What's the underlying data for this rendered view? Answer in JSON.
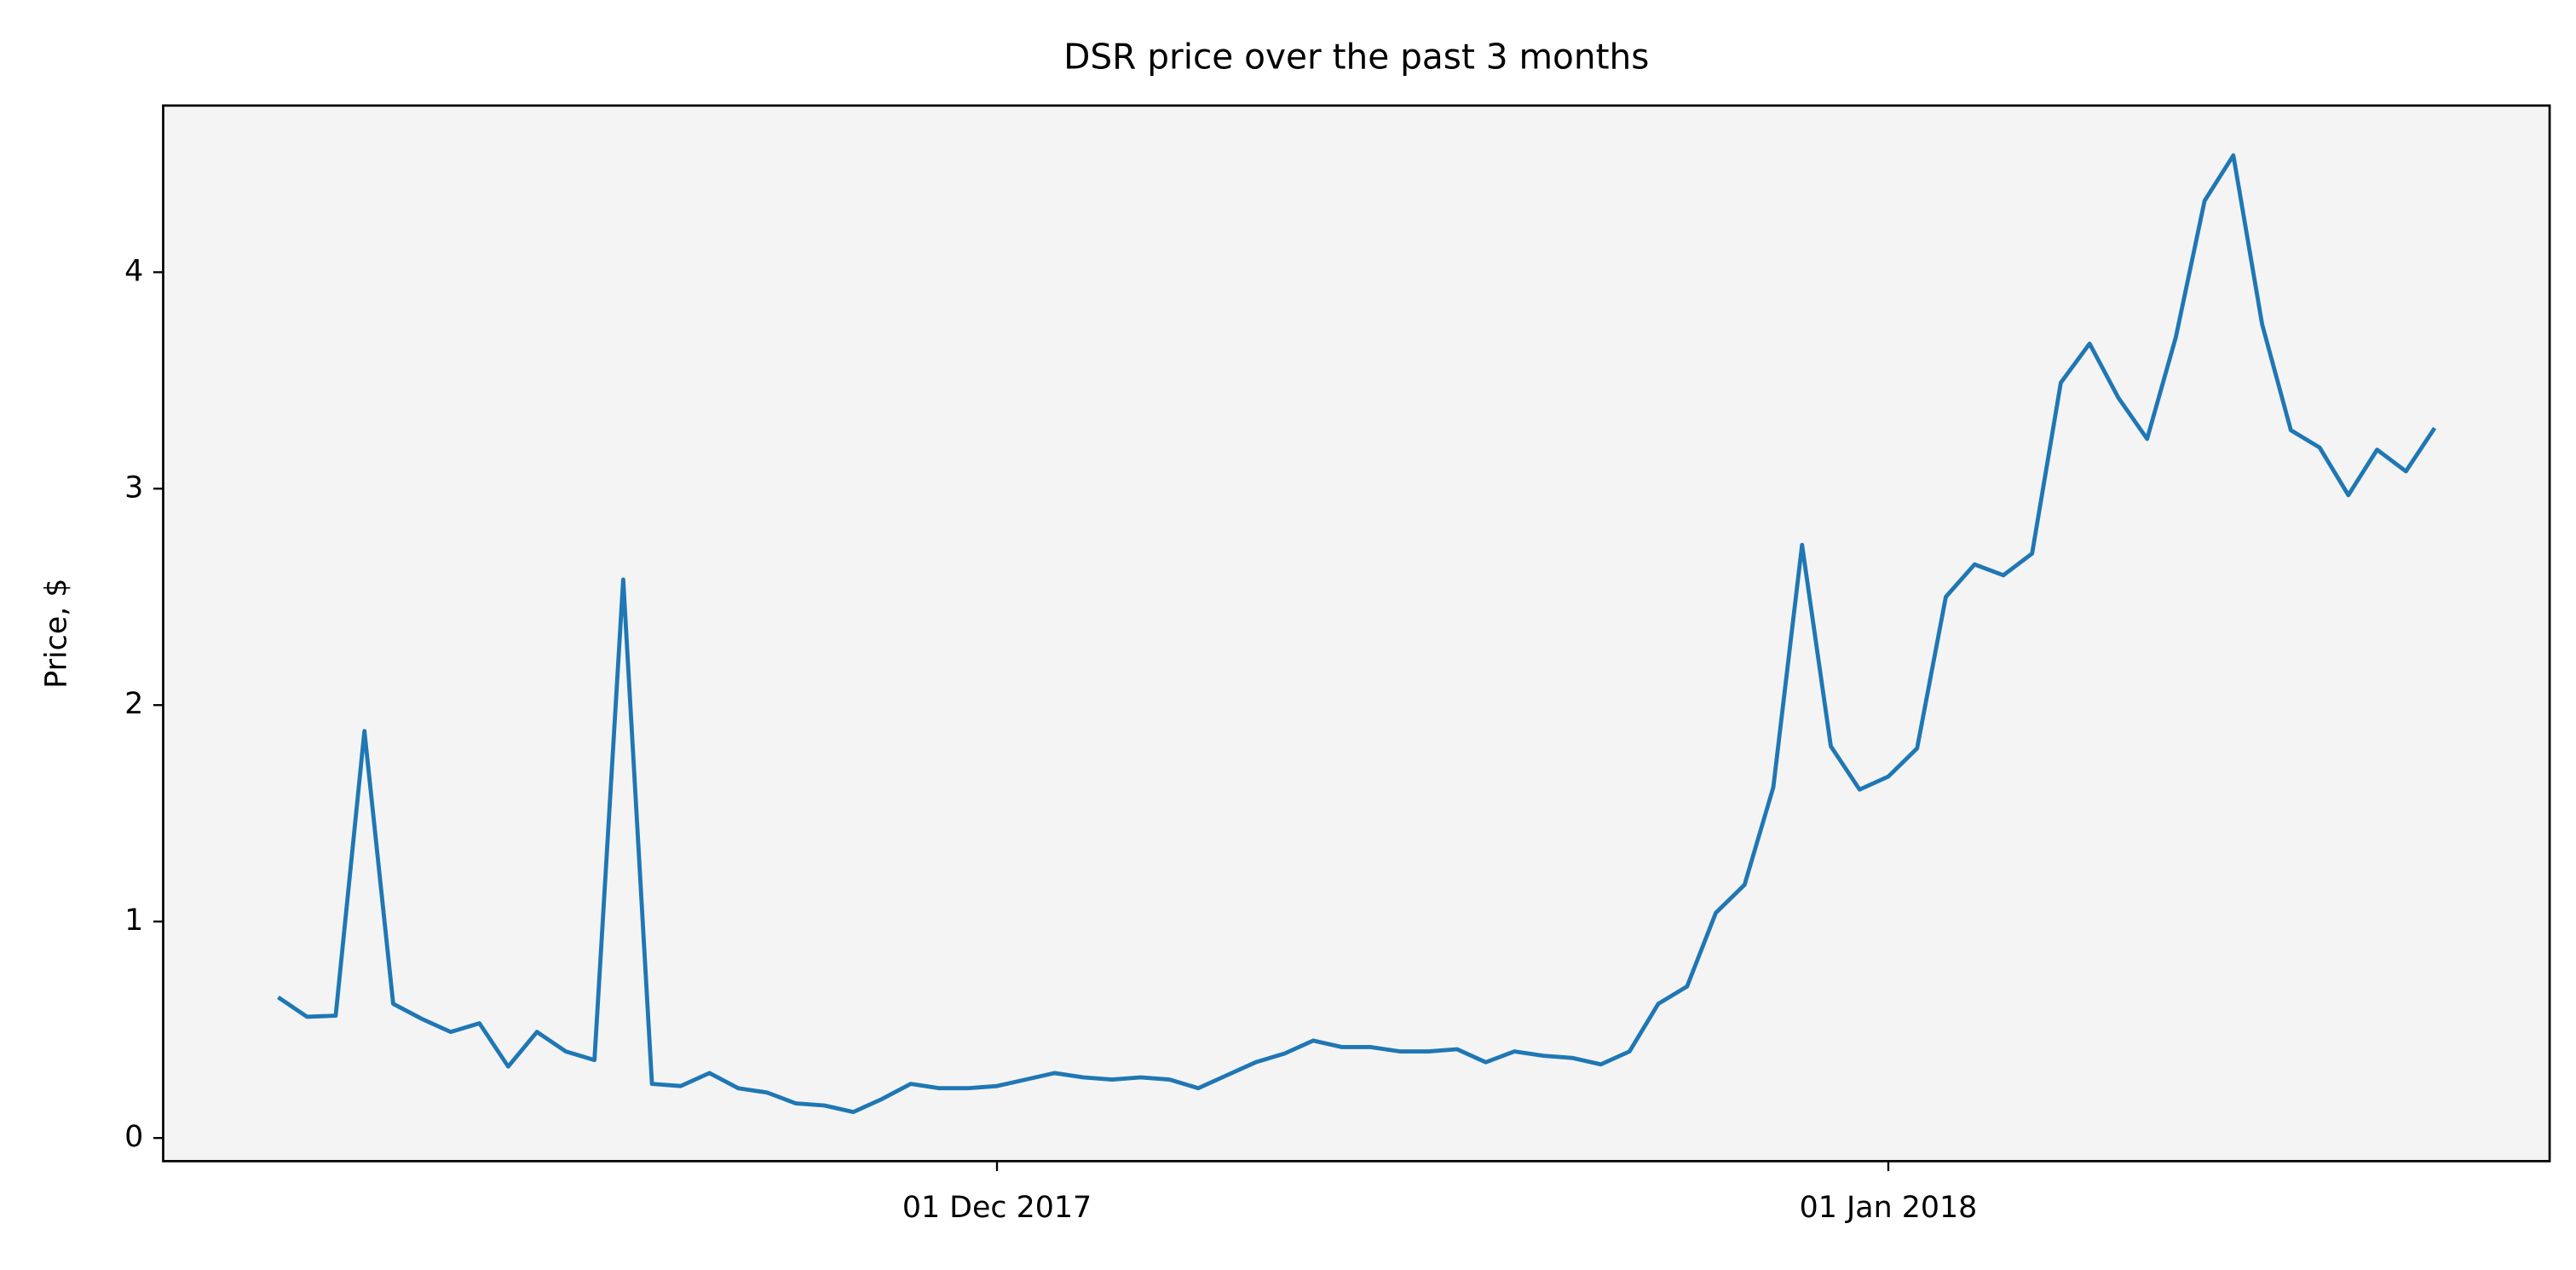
{
  "chart_data": {
    "type": "line",
    "title": "DSR price over the past 3 months",
    "y_label": "Price, $",
    "x": [
      "2017-11-06",
      "2017-11-07",
      "2017-11-08",
      "2017-11-09",
      "2017-11-10",
      "2017-11-11",
      "2017-11-12",
      "2017-11-13",
      "2017-11-14",
      "2017-11-15",
      "2017-11-16",
      "2017-11-17",
      "2017-11-18",
      "2017-11-19",
      "2017-11-20",
      "2017-11-21",
      "2017-11-22",
      "2017-11-23",
      "2017-11-24",
      "2017-11-25",
      "2017-11-26",
      "2017-11-27",
      "2017-11-28",
      "2017-11-29",
      "2017-11-30",
      "2017-12-01",
      "2017-12-02",
      "2017-12-03",
      "2017-12-04",
      "2017-12-05",
      "2017-12-06",
      "2017-12-07",
      "2017-12-08",
      "2017-12-09",
      "2017-12-10",
      "2017-12-11",
      "2017-12-12",
      "2017-12-13",
      "2017-12-14",
      "2017-12-15",
      "2017-12-16",
      "2017-12-17",
      "2017-12-18",
      "2017-12-19",
      "2017-12-20",
      "2017-12-21",
      "2017-12-22",
      "2017-12-23",
      "2017-12-24",
      "2017-12-25",
      "2017-12-26",
      "2017-12-27",
      "2017-12-28",
      "2017-12-29",
      "2017-12-30",
      "2017-12-31",
      "2018-01-01",
      "2018-01-02",
      "2018-01-03",
      "2018-01-04",
      "2018-01-05",
      "2018-01-06",
      "2018-01-07",
      "2018-01-08",
      "2018-01-09",
      "2018-01-10",
      "2018-01-11",
      "2018-01-12",
      "2018-01-13",
      "2018-01-14",
      "2018-01-15",
      "2018-01-16",
      "2018-01-17",
      "2018-01-18",
      "2018-01-19",
      "2018-01-20"
    ],
    "series": [
      {
        "color": "#1f77b4",
        "values": [
          0.65,
          0.56,
          0.565,
          1.88,
          0.62,
          0.55,
          0.49,
          0.53,
          0.33,
          0.49,
          0.4,
          0.36,
          2.58,
          0.25,
          0.24,
          0.3,
          0.23,
          0.21,
          0.16,
          0.15,
          0.12,
          0.18,
          0.25,
          0.23,
          0.23,
          0.24,
          0.27,
          0.3,
          0.28,
          0.27,
          0.28,
          0.27,
          0.23,
          0.29,
          0.35,
          0.39,
          0.45,
          0.42,
          0.42,
          0.4,
          0.4,
          0.41,
          0.35,
          0.4,
          0.38,
          0.37,
          0.34,
          0.4,
          0.62,
          0.7,
          1.04,
          1.17,
          1.62,
          2.74,
          1.81,
          1.61,
          1.67,
          1.8,
          2.5,
          2.65,
          2.6,
          2.7,
          3.49,
          3.67,
          3.42,
          3.23,
          3.7,
          4.33,
          4.54,
          3.76,
          3.27,
          3.19,
          2.97,
          3.18,
          3.08,
          3.28
        ]
      }
    ],
    "xlim": [
      "2017-11-02",
      "2018-01-24"
    ],
    "xticks": [
      {
        "value": "2017-12-01",
        "label": "01 Dec 2017"
      },
      {
        "value": "2018-01-01",
        "label": "01 Jan 2018"
      }
    ],
    "ylim": [
      -0.107,
      4.77
    ],
    "yticks": [
      0,
      1,
      2,
      3,
      4
    ],
    "background": "#f4f4f4"
  }
}
